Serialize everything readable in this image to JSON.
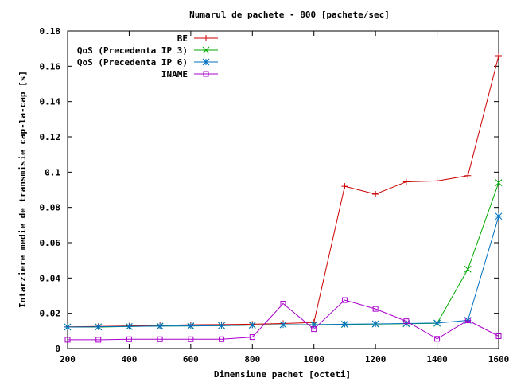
{
  "chart_data": {
    "type": "line",
    "title": "Numarul de pachete - 800 [pachete/sec]",
    "xlabel": "Dimensiune pachet [octeti]",
    "ylabel": "Intarziere medie de transmisie cap-la-cap [s]",
    "xlim": [
      200,
      1600
    ],
    "ylim": [
      0,
      0.18
    ],
    "xticks": [
      "200",
      "400",
      "600",
      "800",
      "1000",
      "1200",
      "1400",
      "1600"
    ],
    "yticks": [
      "0",
      "0.02",
      "0.04",
      "0.06",
      "0.08",
      "0.1",
      "0.12",
      "0.14",
      "0.16",
      "0.18"
    ],
    "grid": false,
    "legend_position": "top-left",
    "series": [
      {
        "name": "BE",
        "color": "#cc0000",
        "marker": "plus",
        "x": [
          200,
          300,
          400,
          500,
          600,
          700,
          800,
          900,
          1000,
          1100,
          1200,
          1300,
          1400,
          1500,
          1600
        ],
        "y": [
          0.0123,
          0.0125,
          0.0128,
          0.0131,
          0.0135,
          0.0136,
          0.0138,
          0.0142,
          0.0148,
          0.092,
          0.0875,
          0.0945,
          0.095,
          0.098,
          0.166
        ]
      },
      {
        "name": "QoS (Precedenta IP 3)",
        "color": "#00aa00",
        "marker": "cross",
        "x": [
          200,
          300,
          400,
          500,
          600,
          700,
          800,
          900,
          1000,
          1100,
          1200,
          1300,
          1400,
          1500,
          1600
        ],
        "y": [
          0.0122,
          0.0122,
          0.0125,
          0.0127,
          0.0128,
          0.013,
          0.0133,
          0.0135,
          0.0136,
          0.0137,
          0.0139,
          0.0141,
          0.0143,
          0.045,
          0.094
        ]
      },
      {
        "name": "QoS (Precedenta IP 6)",
        "color": "#0070c0",
        "marker": "star",
        "x": [
          200,
          300,
          400,
          500,
          600,
          700,
          800,
          900,
          1000,
          1100,
          1200,
          1300,
          1400,
          1500,
          1600
        ],
        "y": [
          0.0122,
          0.0123,
          0.0125,
          0.0127,
          0.0128,
          0.013,
          0.0133,
          0.0135,
          0.0135,
          0.0138,
          0.014,
          0.0142,
          0.0145,
          0.016,
          0.075
        ]
      },
      {
        "name": "INAME",
        "color": "#aa00cc",
        "marker": "square",
        "x": [
          200,
          300,
          400,
          500,
          600,
          700,
          800,
          900,
          1000,
          1100,
          1200,
          1300,
          1400,
          1500,
          1600
        ],
        "y": [
          0.005,
          0.005,
          0.0053,
          0.0053,
          0.0053,
          0.0053,
          0.0065,
          0.0255,
          0.011,
          0.0275,
          0.0225,
          0.0155,
          0.0055,
          0.016,
          0.007
        ]
      }
    ]
  }
}
